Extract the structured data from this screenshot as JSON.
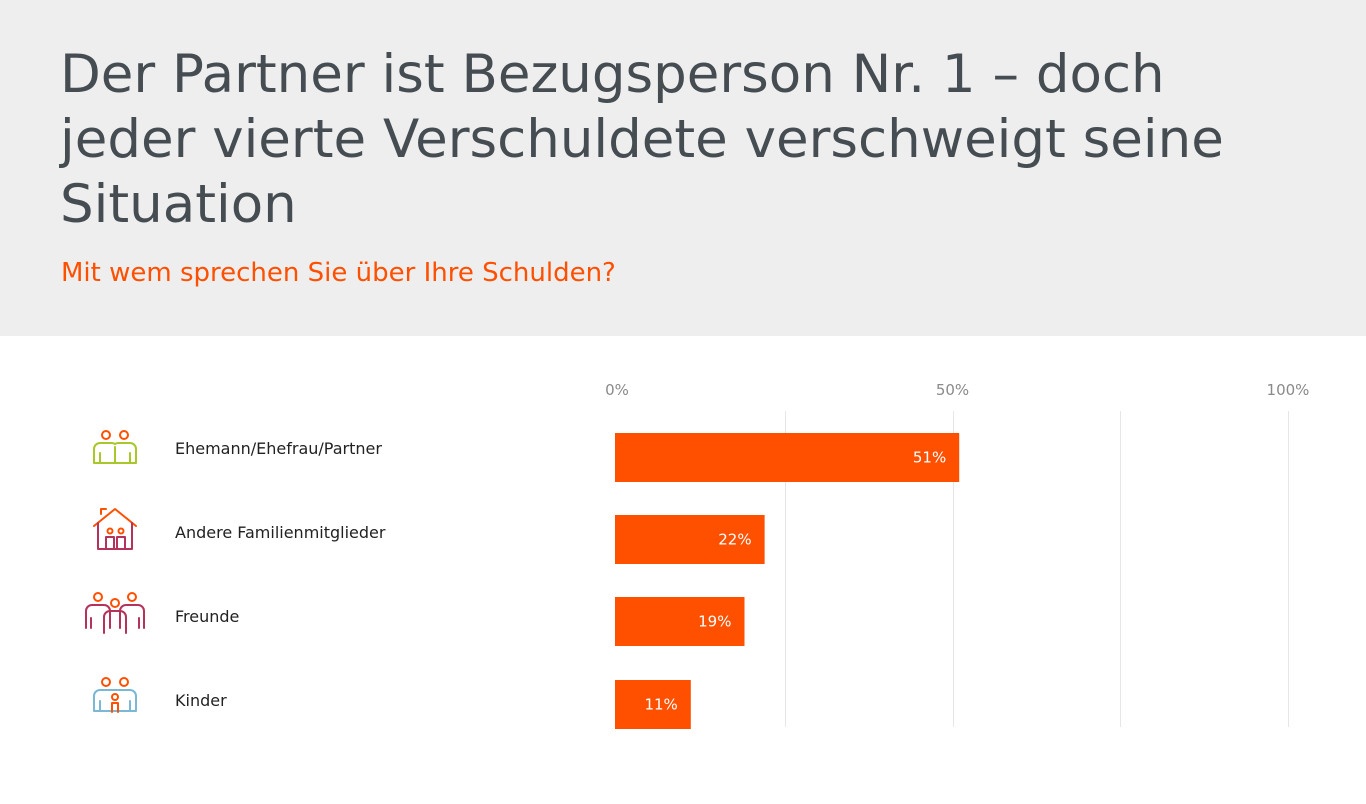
{
  "header": {
    "title": "Der Partner ist Bezugsperson Nr. 1 – doch jeder vierte Verschuldete verschweigt seine Situation",
    "subtitle": "Mit wem sprechen Sie über Ihre Schulden?"
  },
  "colors": {
    "bar": "#ff5000",
    "header_bg": "#eeeeee",
    "title": "#454d52",
    "subtitle": "#ff5000",
    "grid": "#e6e6e6"
  },
  "chart_data": {
    "type": "bar",
    "orientation": "horizontal",
    "categories": [
      "Ehemann/Ehefrau/Partner",
      "Andere Familienmitglieder",
      "Freunde",
      "Kinder"
    ],
    "values": [
      51,
      22,
      19,
      11
    ],
    "value_labels": [
      "51%",
      "22%",
      "19%",
      "11%"
    ],
    "icons": [
      "couple-icon",
      "house-family-icon",
      "friends-icon",
      "parents-child-icon"
    ],
    "xlim": [
      0,
      100
    ],
    "xticks": [
      0,
      50,
      100
    ],
    "xtick_labels": [
      "0%",
      "50%",
      "100%"
    ],
    "grid": true,
    "title": "Der Partner ist Bezugsperson Nr. 1 – doch jeder vierte Verschuldete verschweigt seine Situation",
    "subtitle": "Mit wem sprechen Sie über Ihre Schulden?"
  }
}
